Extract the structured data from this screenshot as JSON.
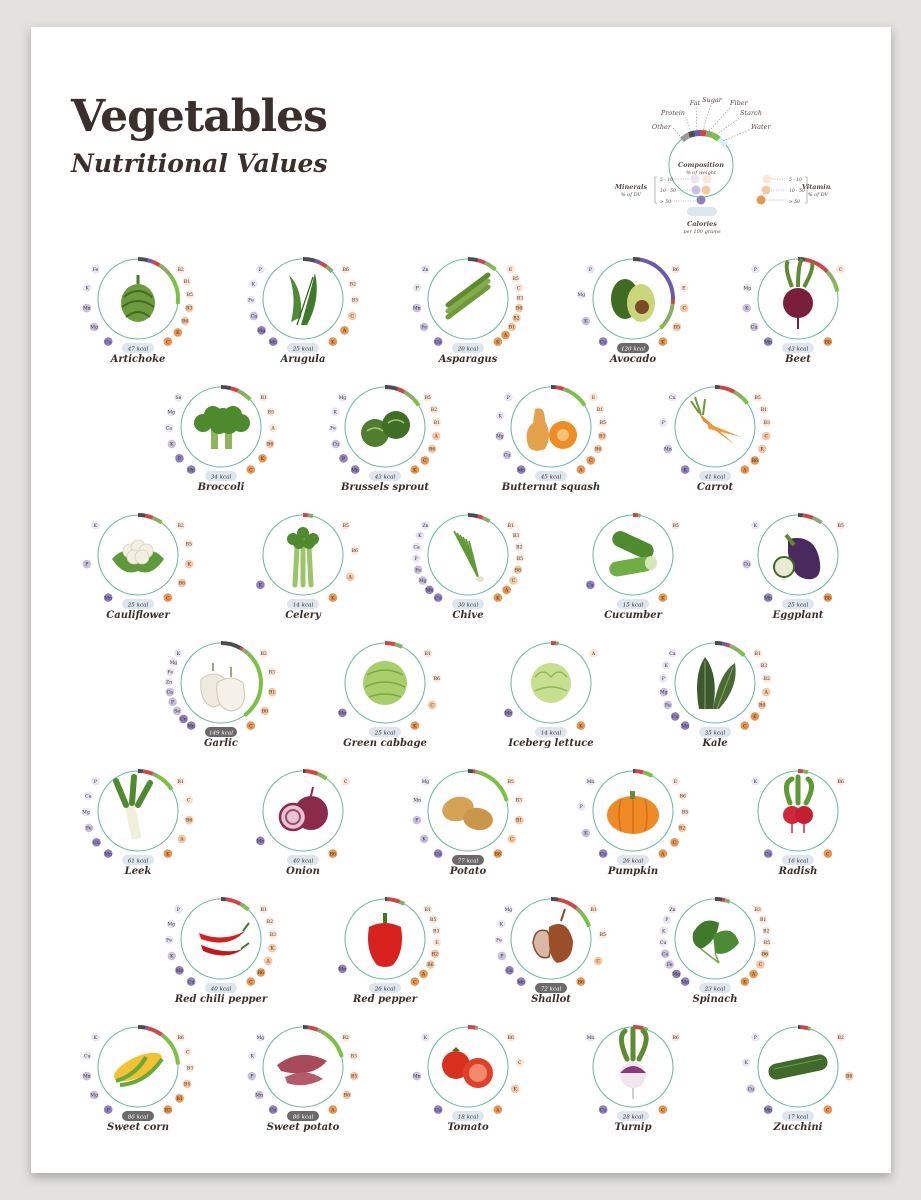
{
  "title": "Vegetables",
  "subtitle": "Nutritional Values",
  "colors": {
    "carbs": "#7cc142",
    "sugar": "#d24545",
    "fiber": "#8bab6a",
    "fat": "#6a5aa8",
    "protein": "#4d4d4d",
    "water": "#d7ecf4",
    "ring": "#6ab5a3",
    "mineral_low": "#e9e5f2",
    "mineral_mid": "#c9c0e0",
    "mineral_high": "#8f80c0",
    "vitamin_low": "#fbe6d8",
    "vitamin_mid": "#f5c7a3",
    "vitamin_high": "#e8964f",
    "kcal_low": "#dbe6ee",
    "kcal_high": "#6a6a6a"
  },
  "legend": {
    "composition_title": "Composition",
    "composition_sub": "% of weight",
    "components": [
      "Other",
      "Protein",
      "Fat",
      "Sugar",
      "Fiber",
      "Starch",
      "Water"
    ],
    "minerals_title": "Minerals",
    "minerals_sub": "% of DV",
    "vitamins_title": "Vitamins",
    "vitamins_sub": "% of DV",
    "levels": [
      "5 - 10",
      "10 - 50",
      "> 50"
    ],
    "calories_title": "Calories",
    "calories_sub": "per 100 grams"
  },
  "vegetables": [
    {
      "name": "Artichoke",
      "kcal": "47 kcal",
      "icon": "artichoke-icon",
      "minerals": [
        "Fe",
        "K",
        "Mn",
        "Mg",
        "Cu"
      ],
      "vitamins": [
        "B2",
        "B1",
        "B5",
        "B3",
        "B6",
        "K",
        "C"
      ],
      "arc": [
        [
          "protein",
          4
        ],
        [
          "fat",
          2
        ],
        [
          "sugar",
          3
        ],
        [
          "fiber",
          6
        ],
        [
          "carbs",
          12
        ]
      ]
    },
    {
      "name": "Arugula",
      "kcal": "25 kcal",
      "icon": "arugula-icon",
      "minerals": [
        "P",
        "K",
        "Fe",
        "Ca",
        "Mg",
        "Mn"
      ],
      "vitamins": [
        "B6",
        "B2",
        "B5",
        "C",
        "A",
        "K"
      ],
      "arc": [
        [
          "protein",
          5
        ],
        [
          "fat",
          2
        ],
        [
          "sugar",
          3
        ],
        [
          "fiber",
          3
        ]
      ]
    },
    {
      "name": "Asparagus",
      "kcal": "20 kcal",
      "icon": "asparagus-icon",
      "minerals": [
        "Zn",
        "P",
        "Mn",
        "Fe",
        "Cu"
      ],
      "vitamins": [
        "E",
        "B5",
        "C",
        "B3",
        "B6",
        "B2",
        "B1",
        "A",
        "K"
      ],
      "arc": [
        [
          "protein",
          4
        ],
        [
          "sugar",
          3
        ],
        [
          "fiber",
          3
        ],
        [
          "carbs",
          2
        ]
      ]
    },
    {
      "name": "Avocado",
      "kcal": "120 kcal",
      "icon": "avocado-icon",
      "dark": true,
      "minerals": [
        "P",
        "Mg",
        "K",
        "Cu"
      ],
      "vitamins": [
        "B6",
        "E",
        "C",
        "B5",
        "K"
      ],
      "arc": [
        [
          "protein",
          3
        ],
        [
          "fat",
          22
        ],
        [
          "sugar",
          2
        ],
        [
          "fiber",
          9
        ],
        [
          "carbs",
          2
        ]
      ]
    },
    {
      "name": "Beet",
      "kcal": "43 kcal",
      "icon": "beet-icon",
      "minerals": [
        "P",
        "Mg",
        "K",
        "Cu",
        "Mn"
      ],
      "vitamins": [
        "C",
        "B6"
      ],
      "arc": [
        [
          "protein",
          3
        ],
        [
          "sugar",
          10
        ],
        [
          "fiber",
          5
        ],
        [
          "carbs",
          4
        ]
      ]
    },
    {
      "name": "Broccoli",
      "kcal": "34 kcal",
      "icon": "broccoli-icon",
      "minerals": [
        "Se",
        "Mg",
        "Ca",
        "K",
        "P",
        "Mn"
      ],
      "vitamins": [
        "B1",
        "B5",
        "A",
        "B6",
        "K",
        "C"
      ],
      "arc": [
        [
          "protein",
          4
        ],
        [
          "sugar",
          3
        ],
        [
          "fiber",
          4
        ],
        [
          "carbs",
          2
        ]
      ]
    },
    {
      "name": "Brussels sprout",
      "kcal": "43 kcal",
      "icon": "brussels-sprout-icon",
      "minerals": [
        "Mg",
        "K",
        "Fe",
        "Cu",
        "P",
        "Mn"
      ],
      "vitamins": [
        "B5",
        "B2",
        "B1",
        "A",
        "B6",
        "C",
        "K"
      ],
      "arc": [
        [
          "protein",
          5
        ],
        [
          "sugar",
          3
        ],
        [
          "fiber",
          5
        ],
        [
          "carbs",
          3
        ]
      ]
    },
    {
      "name": "Butternut squash",
      "kcal": "45 kcal",
      "icon": "butternut-squash-icon",
      "minerals": [
        "P",
        "K",
        "Mg",
        "Cu",
        "Mn"
      ],
      "vitamins": [
        "E",
        "B1",
        "B5",
        "B3",
        "B6",
        "C",
        "A"
      ],
      "arc": [
        [
          "protein",
          2
        ],
        [
          "sugar",
          3
        ],
        [
          "fiber",
          3
        ],
        [
          "carbs",
          8
        ]
      ]
    },
    {
      "name": "Carrot",
      "kcal": "41 kcal",
      "icon": "carrot-icon",
      "minerals": [
        "Cu",
        "P",
        "Mn",
        "K"
      ],
      "vitamins": [
        "B5",
        "B1",
        "B3",
        "C",
        "K",
        "B6",
        "A"
      ],
      "arc": [
        [
          "protein",
          2
        ],
        [
          "sugar",
          6
        ],
        [
          "fiber",
          4
        ],
        [
          "carbs",
          3
        ]
      ]
    },
    {
      "name": "Cauliflower",
      "kcal": "25 kcal",
      "icon": "cauliflower-icon",
      "minerals": [
        "K",
        "P",
        "Mn"
      ],
      "vitamins": [
        "B2",
        "B5",
        "K",
        "B6",
        "C"
      ],
      "arc": [
        [
          "protein",
          3
        ],
        [
          "sugar",
          3
        ],
        [
          "fiber",
          3
        ],
        [
          "carbs",
          1
        ]
      ]
    },
    {
      "name": "Celery",
      "kcal": "14 kcal",
      "icon": "celery-icon",
      "minerals": [
        "K"
      ],
      "vitamins": [
        "B5",
        "B6",
        "A",
        "K"
      ],
      "arc": [
        [
          "sugar",
          2
        ],
        [
          "fiber",
          2
        ]
      ]
    },
    {
      "name": "Chive",
      "kcal": "30 kcal",
      "icon": "chive-icon",
      "minerals": [
        "Zn",
        "K",
        "Ca",
        "P",
        "Fe",
        "Mg",
        "Mn",
        "Cu"
      ],
      "vitamins": [
        "B1",
        "B3",
        "B2",
        "B5",
        "B6",
        "C",
        "A",
        "K"
      ],
      "arc": [
        [
          "protein",
          4
        ],
        [
          "sugar",
          2
        ],
        [
          "fiber",
          3
        ]
      ]
    },
    {
      "name": "Cucumber",
      "kcal": "15 kcal",
      "icon": "cucumber-icon",
      "minerals": [
        "Cu"
      ],
      "vitamins": [
        "B5",
        "K"
      ],
      "arc": [
        [
          "sugar",
          2
        ],
        [
          "fiber",
          1
        ]
      ]
    },
    {
      "name": "Eggplant",
      "kcal": "25 kcal",
      "icon": "eggplant-icon",
      "minerals": [
        "K",
        "Cu",
        "Mn"
      ],
      "vitamins": [
        "B5",
        "B6"
      ],
      "arc": [
        [
          "protein",
          2
        ],
        [
          "sugar",
          4
        ],
        [
          "fiber",
          4
        ]
      ]
    },
    {
      "name": "Garlic",
      "kcal": "149 kcal",
      "icon": "garlic-icon",
      "dark": true,
      "minerals": [
        "K",
        "Mg",
        "Fe",
        "Zn",
        "Ca",
        "P",
        "Se",
        "Cu",
        "Mn"
      ],
      "vitamins": [
        "B2",
        "B3",
        "B1",
        "B6",
        "C"
      ],
      "arc": [
        [
          "protein",
          8
        ],
        [
          "sugar",
          1
        ],
        [
          "fiber",
          3
        ],
        [
          "carbs",
          28
        ]
      ]
    },
    {
      "name": "Green cabbage",
      "kcal": "25 kcal",
      "icon": "green-cabbage-icon",
      "minerals": [
        "Mn"
      ],
      "vitamins": [
        "B1",
        "B6",
        "C",
        "K"
      ],
      "arc": [
        [
          "sugar",
          4
        ],
        [
          "fiber",
          3
        ]
      ]
    },
    {
      "name": "Iceberg lettuce",
      "kcal": "14 kcal",
      "icon": "iceberg-lettuce-icon",
      "minerals": [
        "Mn"
      ],
      "vitamins": [
        "A",
        "K"
      ],
      "arc": [
        [
          "sugar",
          2
        ],
        [
          "fiber",
          1
        ]
      ]
    },
    {
      "name": "Kale",
      "kcal": "35 kcal",
      "icon": "kale-icon",
      "minerals": [
        "Ca",
        "K",
        "P",
        "Mg",
        "Fe",
        "Cu",
        "Mn"
      ],
      "vitamins": [
        "B1",
        "B3",
        "B2",
        "A",
        "B6",
        "K",
        "C"
      ],
      "arc": [
        [
          "protein",
          3
        ],
        [
          "fat",
          2
        ],
        [
          "sugar",
          1
        ],
        [
          "fiber",
          4
        ],
        [
          "carbs",
          3
        ]
      ]
    },
    {
      "name": "Leek",
      "kcal": "61 kcal",
      "icon": "leek-icon",
      "minerals": [
        "P",
        "Ca",
        "Mg",
        "Fe",
        "Cu",
        "Mn"
      ],
      "vitamins": [
        "B1",
        "C",
        "B6",
        "A",
        "K"
      ],
      "arc": [
        [
          "protein",
          2
        ],
        [
          "sugar",
          4
        ],
        [
          "fiber",
          2
        ],
        [
          "carbs",
          8
        ]
      ]
    },
    {
      "name": "Onion",
      "kcal": "40 kcal",
      "icon": "onion-icon",
      "minerals": [
        "Mn"
      ],
      "vitamins": [
        "C",
        "B6"
      ],
      "arc": [
        [
          "protein",
          1
        ],
        [
          "sugar",
          5
        ],
        [
          "fiber",
          2
        ],
        [
          "carbs",
          2
        ]
      ]
    },
    {
      "name": "Potato",
      "kcal": "77 kcal",
      "icon": "potato-icon",
      "dark": true,
      "minerals": [
        "Mg",
        "Mn",
        "P",
        "K",
        "Cu"
      ],
      "vitamins": [
        "B5",
        "B3",
        "B1",
        "C",
        "B6"
      ],
      "arc": [
        [
          "protein",
          2
        ],
        [
          "sugar",
          1
        ],
        [
          "fiber",
          2
        ],
        [
          "carbs",
          16
        ]
      ]
    },
    {
      "name": "Pumpkin",
      "kcal": "26 kcal",
      "icon": "pumpkin-icon",
      "minerals": [
        "Mn",
        "P",
        "K",
        "Cu"
      ],
      "vitamins": [
        "E",
        "B6",
        "B5",
        "B2",
        "C",
        "A"
      ],
      "arc": [
        [
          "protein",
          1
        ],
        [
          "sugar",
          3
        ],
        [
          "fiber",
          1
        ],
        [
          "carbs",
          3
        ]
      ]
    },
    {
      "name": "Radish",
      "kcal": "16 kcal",
      "icon": "radish-icon",
      "minerals": [
        "K",
        "Cu"
      ],
      "vitamins": [
        "B6",
        "C"
      ],
      "arc": [
        [
          "sugar",
          2
        ],
        [
          "fiber",
          2
        ]
      ]
    },
    {
      "name": "Red chili pepper",
      "kcal": "40 kcal",
      "icon": "red-chili-pepper-icon",
      "minerals": [
        "P",
        "Mg",
        "Fe",
        "K",
        "Mn",
        "Cu"
      ],
      "vitamins": [
        "B1",
        "B2",
        "B3",
        "K",
        "A",
        "B6",
        "C"
      ],
      "arc": [
        [
          "protein",
          2
        ],
        [
          "sugar",
          6
        ],
        [
          "fiber",
          2
        ],
        [
          "carbs",
          2
        ]
      ]
    },
    {
      "name": "Red pepper",
      "kcal": "26 kcal",
      "icon": "red-pepper-icon",
      "minerals": [
        "Mn"
      ],
      "vitamins": [
        "B1",
        "B5",
        "B3",
        "E",
        "B2",
        "B6",
        "A",
        "C"
      ],
      "arc": [
        [
          "protein",
          1
        ],
        [
          "sugar",
          5
        ],
        [
          "fiber",
          2
        ]
      ]
    },
    {
      "name": "Shallot",
      "kcal": "72 kcal",
      "icon": "shallot-icon",
      "dark": true,
      "minerals": [
        "Mg",
        "K",
        "Fe",
        "P",
        "Cu",
        "Mn"
      ],
      "vitamins": [
        "B1",
        "B5",
        "C",
        "B6"
      ],
      "arc": [
        [
          "protein",
          3
        ],
        [
          "sugar",
          8
        ],
        [
          "fiber",
          3
        ],
        [
          "carbs",
          6
        ]
      ]
    },
    {
      "name": "Spinach",
      "kcal": "23 kcal",
      "icon": "spinach-icon",
      "minerals": [
        "Zn",
        "P",
        "K",
        "Cu",
        "Ca",
        "Fe",
        "Mg",
        "Mn"
      ],
      "vitamins": [
        "B3",
        "B1",
        "B2",
        "B5",
        "B6",
        "C",
        "A",
        "K"
      ],
      "arc": [
        [
          "protein",
          3
        ],
        [
          "sugar",
          1
        ],
        [
          "fiber",
          2
        ]
      ]
    },
    {
      "name": "Sweet corn",
      "kcal": "86 kcal",
      "icon": "sweet-corn-icon",
      "dark": true,
      "minerals": [
        "K",
        "Cu",
        "Mn",
        "Mg",
        "P"
      ],
      "vitamins": [
        "B6",
        "C",
        "B3",
        "B5",
        "B1",
        "B3"
      ],
      "arc": [
        [
          "protein",
          3
        ],
        [
          "fat",
          1
        ],
        [
          "sugar",
          6
        ],
        [
          "fiber",
          2
        ],
        [
          "carbs",
          12
        ]
      ]
    },
    {
      "name": "Sweet potato",
      "kcal": "86 kcal",
      "icon": "sweet-potato-icon",
      "dark": true,
      "minerals": [
        "Mg",
        "K",
        "P",
        "Mn",
        "Cu"
      ],
      "vitamins": [
        "B2",
        "B3",
        "B5",
        "B6",
        "A"
      ],
      "arc": [
        [
          "protein",
          2
        ],
        [
          "sugar",
          4
        ],
        [
          "fiber",
          3
        ],
        [
          "carbs",
          12
        ]
      ]
    },
    {
      "name": "Tomato",
      "kcal": "18 kcal",
      "icon": "tomato-icon",
      "minerals": [
        "K",
        "Mn",
        "Cu"
      ],
      "vitamins": [
        "B6",
        "C",
        "K",
        "A"
      ],
      "arc": [
        [
          "sugar",
          3
        ],
        [
          "fiber",
          1
        ]
      ]
    },
    {
      "name": "Turnip",
      "kcal": "28 kcal",
      "icon": "turnip-icon",
      "minerals": [
        "Mn",
        "Cu"
      ],
      "vitamins": [
        "B6",
        "C"
      ],
      "arc": [
        [
          "sugar",
          4
        ],
        [
          "fiber",
          2
        ]
      ]
    },
    {
      "name": "Zucchini",
      "kcal": "17 kcal",
      "icon": "zucchini-icon",
      "minerals": [
        "P",
        "K",
        "Cu",
        "Mn"
      ],
      "vitamins": [
        "B2",
        "B6",
        "C"
      ],
      "arc": [
        [
          "protein",
          1
        ],
        [
          "sugar",
          3
        ],
        [
          "fiber",
          1
        ]
      ]
    }
  ]
}
